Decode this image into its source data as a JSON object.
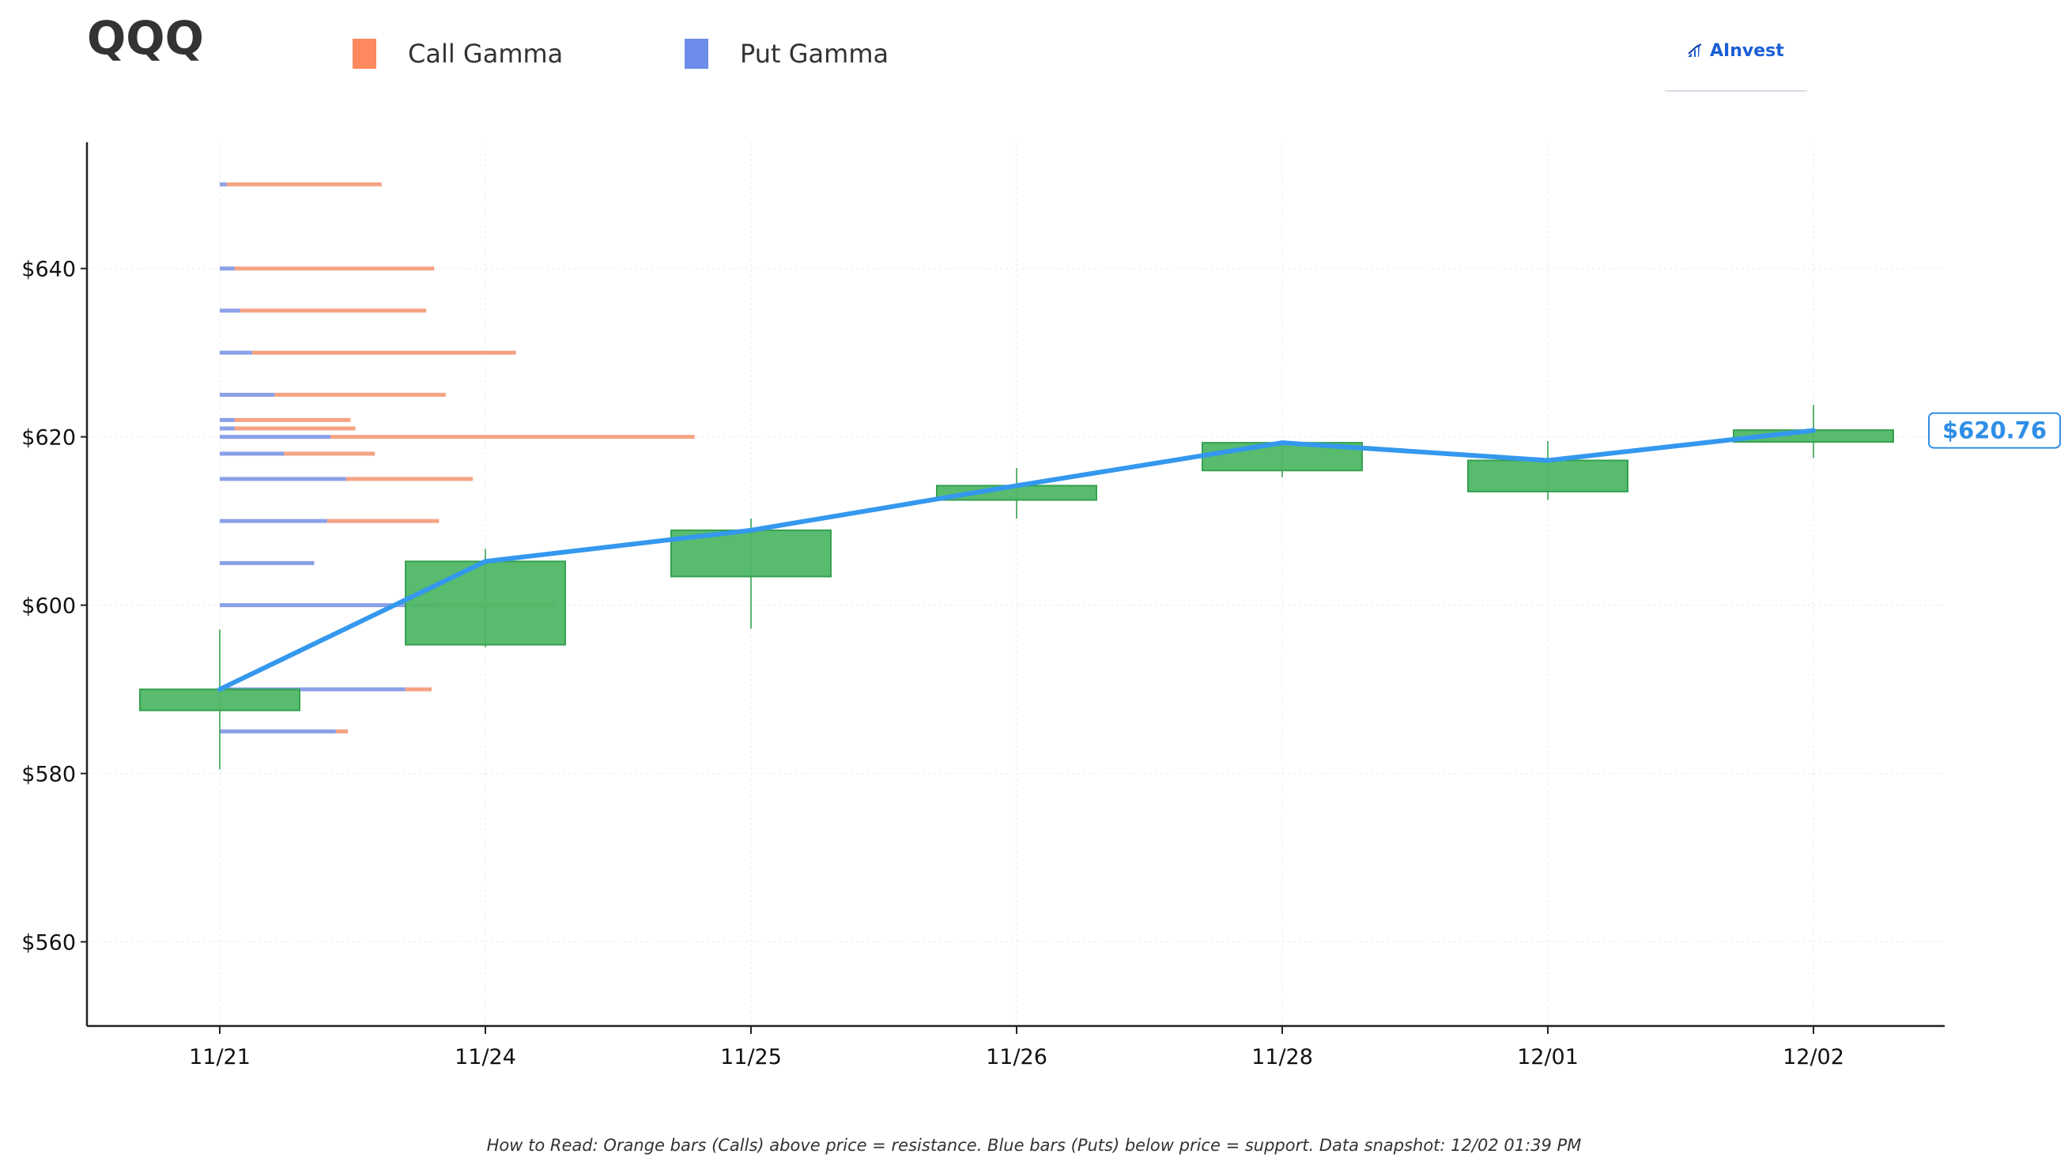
{
  "header": {
    "ticker": "QQQ",
    "legend": [
      {
        "label": "Call Gamma",
        "color": "#fd8a5f"
      },
      {
        "label": "Put Gamma",
        "color": "#6d8ceb"
      }
    ],
    "logo_text": "AInvest"
  },
  "footnote": "How to Read: Orange bars (Calls) above price = resistance. Blue bars (Puts) below price = support. Data snapshot: 12/02 01:39 PM",
  "colors": {
    "call": "#f5a283",
    "put": "#8aa0e8",
    "candle_fill": "#4fb766",
    "candle_edge": "#35a150",
    "price_line": "#3498ee",
    "price_badge": "#2f8ee6"
  },
  "chart_data": {
    "type": "candlestick",
    "title": "QQQ",
    "x": [
      "11/21",
      "11/24",
      "11/25",
      "11/26",
      "11/28",
      "12/01",
      "12/02"
    ],
    "ylim": [
      550,
      655
    ],
    "yticks": [
      560,
      580,
      600,
      620,
      640
    ],
    "ytick_labels": [
      "$560",
      "$580",
      "$600",
      "$620",
      "$640"
    ],
    "grid": true,
    "legend_position": "top",
    "candles": [
      {
        "date": "11/21",
        "open": 587.5,
        "high": 597.1,
        "low": 580.5,
        "close": 590.0
      },
      {
        "date": "11/24",
        "open": 595.3,
        "high": 606.7,
        "low": 595.0,
        "close": 605.2
      },
      {
        "date": "11/25",
        "open": 603.4,
        "high": 610.3,
        "low": 597.2,
        "close": 608.9
      },
      {
        "date": "11/26",
        "open": 612.5,
        "high": 616.3,
        "low": 610.3,
        "close": 614.2
      },
      {
        "date": "11/28",
        "open": 616.0,
        "high": 619.4,
        "low": 615.2,
        "close": 619.3
      },
      {
        "date": "12/01",
        "open": 613.5,
        "high": 619.5,
        "low": 612.5,
        "close": 617.2
      },
      {
        "date": "12/02",
        "open": 619.4,
        "high": 623.8,
        "low": 617.5,
        "close": 620.8
      }
    ],
    "price_line": {
      "name": "Price",
      "values": [
        590.0,
        605.2,
        608.9,
        614.2,
        619.3,
        617.2,
        620.76
      ]
    },
    "last_price_label": "$620.76",
    "gamma_scale_max": 4.6,
    "gamma_levels": [
      {
        "strike": 650,
        "put": 0.1,
        "call": 2.3
      },
      {
        "strike": 640,
        "put": 0.22,
        "call": 2.96
      },
      {
        "strike": 635,
        "put": 0.3,
        "call": 2.76
      },
      {
        "strike": 630,
        "put": 0.48,
        "call": 3.91
      },
      {
        "strike": 625,
        "put": 0.81,
        "call": 2.54
      },
      {
        "strike": 622,
        "put": 0.22,
        "call": 1.72
      },
      {
        "strike": 621,
        "put": 0.22,
        "call": 1.79
      },
      {
        "strike": 620,
        "put": 1.64,
        "call": 5.4
      },
      {
        "strike": 618,
        "put": 0.95,
        "call": 1.35
      },
      {
        "strike": 615,
        "put": 1.87,
        "call": 1.88
      },
      {
        "strike": 610,
        "put": 1.59,
        "call": 1.66
      },
      {
        "strike": 605,
        "put": 1.4,
        "call": 0.0
      },
      {
        "strike": 600,
        "put": 3.2,
        "call": 1.77
      },
      {
        "strike": 590,
        "put": 2.75,
        "call": 0.39
      },
      {
        "strike": 585,
        "put": 1.72,
        "call": 0.18
      }
    ]
  }
}
